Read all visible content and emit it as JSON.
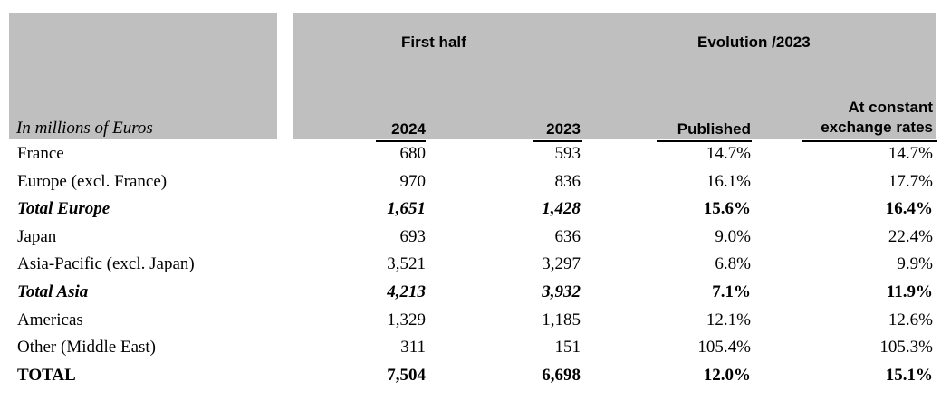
{
  "table": {
    "unit_label": "In millions of Euros",
    "group_headers": {
      "first_half": "First half",
      "evolution": "Evolution /2023"
    },
    "columns": {
      "y2024": "2024",
      "y2023": "2023",
      "published": "Published",
      "constant_line1": "At constant",
      "constant_line2": "exchange rates"
    },
    "rows": [
      {
        "name": "France",
        "y2024": "680",
        "y2023": "593",
        "published": "14.7%",
        "constant": "14.7%"
      },
      {
        "name": "Europe (excl. France)",
        "y2024": "970",
        "y2023": "836",
        "published": "16.1%",
        "constant": "17.7%"
      },
      {
        "name": "Total Europe",
        "y2024": "1,651",
        "y2023": "1,428",
        "published": "15.6%",
        "constant": "16.4%"
      },
      {
        "name": "Japan",
        "y2024": "693",
        "y2023": "636",
        "published": "9.0%",
        "constant": "22.4%"
      },
      {
        "name": "Asia-Pacific (excl. Japan)",
        "y2024": "3,521",
        "y2023": "3,297",
        "published": "6.8%",
        "constant": "9.9%"
      },
      {
        "name": "Total Asia",
        "y2024": "4,213",
        "y2023": "3,932",
        "published": "7.1%",
        "constant": "11.9%"
      },
      {
        "name": "Americas",
        "y2024": "1,329",
        "y2023": "1,185",
        "published": "12.1%",
        "constant": "12.6%"
      },
      {
        "name": "Other (Middle East)",
        "y2024": "311",
        "y2023": "151",
        "published": "105.4%",
        "constant": "105.3%"
      },
      {
        "name": "TOTAL",
        "y2024": "7,504",
        "y2023": "6,698",
        "published": "12.0%",
        "constant": "15.1%"
      }
    ]
  }
}
